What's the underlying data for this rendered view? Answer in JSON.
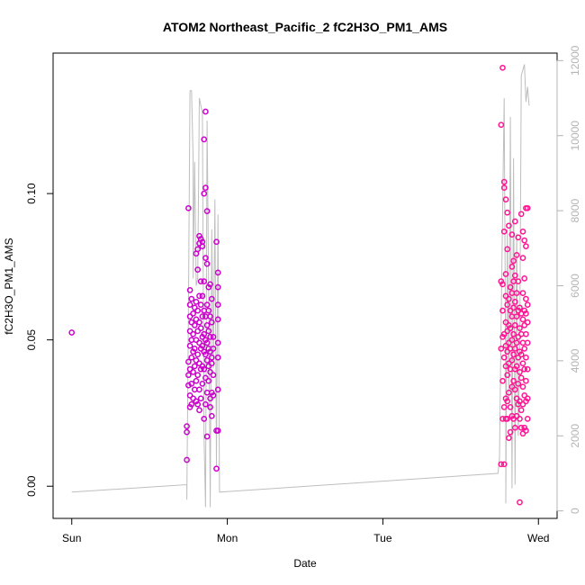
{
  "chart_data": {
    "type": "scatter",
    "title": "ATOM2 Northeast_Pacific_2 fC2H3O_PM1_AMS",
    "xlabel": "Date",
    "ylabel": "fC2H3O_PM1_AMS",
    "x_ticks": [
      "Sun",
      "Mon",
      "Tue",
      "Wed"
    ],
    "xlim": [
      -0.12,
      3.12
    ],
    "ylim": [
      -0.011,
      0.148
    ],
    "y_ticks": [
      0.0,
      0.05,
      0.1
    ],
    "y_tick_labels": [
      "0.00",
      "0.05",
      "0.10"
    ],
    "y2_ticks": [
      0,
      2000,
      4000,
      6000,
      8000,
      10000,
      12000
    ],
    "y2_tick_labels": [
      "0",
      "2000",
      "4000",
      "6000",
      "8000",
      "10000",
      "12000"
    ],
    "y2lim": [
      -200,
      12200
    ],
    "grid": false,
    "colors": {
      "points_mon": "#cc00cc",
      "points_wed": "#ff1493",
      "altitude_line": "#bebebe",
      "right_axis": "#b4b4b4"
    },
    "series": [
      {
        "kind": "points",
        "note_days_from_sunday": true,
        "points": [
          [
            0.0,
            0.0525
          ],
          [
            0.74,
            0.009
          ],
          [
            0.74,
            0.0185
          ],
          [
            0.74,
            0.0205
          ],
          [
            0.75,
            0.0345
          ],
          [
            0.75,
            0.038
          ],
          [
            0.75,
            0.0425
          ],
          [
            0.75,
            0.095
          ],
          [
            0.76,
            0.027
          ],
          [
            0.76,
            0.031
          ],
          [
            0.76,
            0.04
          ],
          [
            0.76,
            0.048
          ],
          [
            0.76,
            0.053
          ],
          [
            0.76,
            0.058
          ],
          [
            0.76,
            0.062
          ],
          [
            0.76,
            0.067
          ],
          [
            0.77,
            0.028
          ],
          [
            0.77,
            0.035
          ],
          [
            0.77,
            0.044
          ],
          [
            0.77,
            0.05
          ],
          [
            0.77,
            0.056
          ],
          [
            0.77,
            0.064
          ],
          [
            0.78,
            0.03
          ],
          [
            0.78,
            0.039
          ],
          [
            0.78,
            0.046
          ],
          [
            0.78,
            0.052
          ],
          [
            0.78,
            0.059
          ],
          [
            0.79,
            0.033
          ],
          [
            0.79,
            0.041
          ],
          [
            0.79,
            0.047
          ],
          [
            0.79,
            0.055
          ],
          [
            0.79,
            0.061
          ],
          [
            0.8,
            0.029
          ],
          [
            0.8,
            0.036
          ],
          [
            0.8,
            0.043
          ],
          [
            0.8,
            0.05
          ],
          [
            0.8,
            0.057
          ],
          [
            0.8,
            0.063
          ],
          [
            0.8,
            0.0795
          ],
          [
            0.81,
            0.028
          ],
          [
            0.81,
            0.038
          ],
          [
            0.81,
            0.045
          ],
          [
            0.81,
            0.053
          ],
          [
            0.81,
            0.06
          ],
          [
            0.81,
            0.074
          ],
          [
            0.81,
            0.081
          ],
          [
            0.82,
            0.026
          ],
          [
            0.82,
            0.033
          ],
          [
            0.82,
            0.042
          ],
          [
            0.82,
            0.049
          ],
          [
            0.82,
            0.056
          ],
          [
            0.82,
            0.065
          ],
          [
            0.82,
            0.083
          ],
          [
            0.82,
            0.0855
          ],
          [
            0.83,
            0.03
          ],
          [
            0.83,
            0.04
          ],
          [
            0.83,
            0.047
          ],
          [
            0.83,
            0.054
          ],
          [
            0.83,
            0.062
          ],
          [
            0.83,
            0.07
          ],
          [
            0.83,
            0.0845
          ],
          [
            0.84,
            0.035
          ],
          [
            0.84,
            0.041
          ],
          [
            0.84,
            0.048
          ],
          [
            0.84,
            0.051
          ],
          [
            0.84,
            0.058
          ],
          [
            0.84,
            0.065
          ],
          [
            0.84,
            0.082
          ],
          [
            0.84,
            0.0835
          ],
          [
            0.85,
            0.023
          ],
          [
            0.85,
            0.04
          ],
          [
            0.85,
            0.046
          ],
          [
            0.85,
            0.052
          ],
          [
            0.85,
            0.06
          ],
          [
            0.85,
            0.07
          ],
          [
            0.85,
            0.1185
          ],
          [
            0.85,
            0.1
          ],
          [
            0.86,
            0.028
          ],
          [
            0.86,
            0.037
          ],
          [
            0.86,
            0.045
          ],
          [
            0.86,
            0.05
          ],
          [
            0.86,
            0.058
          ],
          [
            0.86,
            0.078
          ],
          [
            0.86,
            0.128
          ],
          [
            0.86,
            0.102
          ],
          [
            0.87,
            0.017
          ],
          [
            0.87,
            0.032
          ],
          [
            0.87,
            0.043
          ],
          [
            0.87,
            0.049
          ],
          [
            0.87,
            0.055
          ],
          [
            0.87,
            0.062
          ],
          [
            0.87,
            0.076
          ],
          [
            0.87,
            0.094
          ],
          [
            0.88,
            0.036
          ],
          [
            0.88,
            0.041
          ],
          [
            0.88,
            0.047
          ],
          [
            0.88,
            0.053
          ],
          [
            0.88,
            0.06
          ],
          [
            0.88,
            0.068
          ],
          [
            0.89,
            0.027
          ],
          [
            0.89,
            0.03
          ],
          [
            0.89,
            0.039
          ],
          [
            0.89,
            0.046
          ],
          [
            0.89,
            0.051
          ],
          [
            0.89,
            0.058
          ],
          [
            0.89,
            0.069
          ],
          [
            0.9,
            0.024
          ],
          [
            0.9,
            0.032
          ],
          [
            0.9,
            0.042
          ],
          [
            0.9,
            0.044
          ],
          [
            0.9,
            0.056
          ],
          [
            0.9,
            0.064
          ],
          [
            0.91,
            0.031
          ],
          [
            0.91,
            0.038
          ],
          [
            0.91,
            0.047
          ],
          [
            0.91,
            0.051
          ],
          [
            0.93,
            0.006
          ],
          [
            0.93,
            0.019
          ],
          [
            0.93,
            0.0835
          ],
          [
            0.94,
            0.019
          ],
          [
            0.94,
            0.033
          ],
          [
            0.94,
            0.044
          ],
          [
            0.94,
            0.049
          ],
          [
            0.94,
            0.057
          ],
          [
            0.94,
            0.062
          ],
          [
            0.94,
            0.068
          ],
          [
            0.94,
            0.073
          ],
          [
            2.76,
            0.0075
          ],
          [
            2.76,
            0.047
          ],
          [
            2.76,
            0.07
          ],
          [
            2.76,
            0.1235
          ],
          [
            2.77,
            0.143
          ],
          [
            2.77,
            0.023
          ],
          [
            2.77,
            0.036
          ],
          [
            2.77,
            0.051
          ],
          [
            2.77,
            0.06
          ],
          [
            2.77,
            0.069
          ],
          [
            2.78,
            0.027
          ],
          [
            2.78,
            0.044
          ],
          [
            2.78,
            0.052
          ],
          [
            2.78,
            0.087
          ],
          [
            2.78,
            0.104
          ],
          [
            2.78,
            0.102
          ],
          [
            2.78,
            0.0075
          ],
          [
            2.79,
            0.023
          ],
          [
            2.79,
            0.03
          ],
          [
            2.79,
            0.041
          ],
          [
            2.79,
            0.048
          ],
          [
            2.79,
            0.056
          ],
          [
            2.79,
            0.065
          ],
          [
            2.79,
            0.0725
          ],
          [
            2.79,
            0.098
          ],
          [
            2.8,
            0.023
          ],
          [
            2.8,
            0.029
          ],
          [
            2.8,
            0.038
          ],
          [
            2.8,
            0.046
          ],
          [
            2.8,
            0.053
          ],
          [
            2.8,
            0.062
          ],
          [
            2.8,
            0.081
          ],
          [
            2.8,
            0.0935
          ],
          [
            2.81,
            0.0165
          ],
          [
            2.81,
            0.032
          ],
          [
            2.81,
            0.042
          ],
          [
            2.81,
            0.049
          ],
          [
            2.81,
            0.055
          ],
          [
            2.81,
            0.064
          ],
          [
            2.81,
            0.089
          ],
          [
            2.82,
            0.0185
          ],
          [
            2.82,
            0.027
          ],
          [
            2.82,
            0.04
          ],
          [
            2.82,
            0.047
          ],
          [
            2.82,
            0.054
          ],
          [
            2.82,
            0.06
          ],
          [
            2.82,
            0.068
          ],
          [
            2.83,
            0.024
          ],
          [
            2.83,
            0.034
          ],
          [
            2.83,
            0.043
          ],
          [
            2.83,
            0.05
          ],
          [
            2.83,
            0.058
          ],
          [
            2.83,
            0.066
          ],
          [
            2.83,
            0.075
          ],
          [
            2.83,
            0.086
          ],
          [
            2.84,
            0.023
          ],
          [
            2.84,
            0.036
          ],
          [
            2.84,
            0.045
          ],
          [
            2.84,
            0.052
          ],
          [
            2.84,
            0.061
          ],
          [
            2.84,
            0.07
          ],
          [
            2.84,
            0.077
          ],
          [
            2.85,
            0.02
          ],
          [
            2.85,
            0.033
          ],
          [
            2.85,
            0.04
          ],
          [
            2.85,
            0.047
          ],
          [
            2.85,
            0.055
          ],
          [
            2.85,
            0.063
          ],
          [
            2.85,
            0.072
          ],
          [
            2.85,
            0.0905
          ],
          [
            2.86,
            0.024
          ],
          [
            2.86,
            0.03
          ],
          [
            2.86,
            0.041
          ],
          [
            2.86,
            0.049
          ],
          [
            2.86,
            0.058
          ],
          [
            2.86,
            0.066
          ],
          [
            2.86,
            0.079
          ],
          [
            2.87,
            0.028
          ],
          [
            2.87,
            0.035
          ],
          [
            2.87,
            0.044
          ],
          [
            2.87,
            0.051
          ],
          [
            2.87,
            0.06
          ],
          [
            2.87,
            0.07
          ],
          [
            2.87,
            0.085
          ],
          [
            2.88,
            0.023
          ],
          [
            2.88,
            0.029
          ],
          [
            2.88,
            0.039
          ],
          [
            2.88,
            0.046
          ],
          [
            2.88,
            0.054
          ],
          [
            2.88,
            0.061
          ],
          [
            2.88,
            -0.0055
          ],
          [
            2.89,
            0.02
          ],
          [
            2.89,
            0.026
          ],
          [
            2.89,
            0.037
          ],
          [
            2.89,
            0.045
          ],
          [
            2.89,
            0.052
          ],
          [
            2.89,
            0.059
          ],
          [
            2.89,
            0.093
          ],
          [
            2.9,
            0.018
          ],
          [
            2.9,
            0.028
          ],
          [
            2.9,
            0.034
          ],
          [
            2.9,
            0.042
          ],
          [
            2.9,
            0.049
          ],
          [
            2.9,
            0.057
          ],
          [
            2.9,
            0.066
          ],
          [
            2.9,
            0.078
          ],
          [
            2.9,
            0.087
          ],
          [
            2.91,
            0.02
          ],
          [
            2.91,
            0.031
          ],
          [
            2.91,
            0.04
          ],
          [
            2.91,
            0.047
          ],
          [
            2.91,
            0.055
          ],
          [
            2.91,
            0.06
          ],
          [
            2.91,
            0.071
          ],
          [
            2.91,
            0.084
          ],
          [
            2.92,
            0.019
          ],
          [
            2.92,
            0.029
          ],
          [
            2.92,
            0.036
          ],
          [
            2.92,
            0.044
          ],
          [
            2.92,
            0.052
          ],
          [
            2.92,
            0.059
          ],
          [
            2.92,
            0.064
          ],
          [
            2.92,
            0.095
          ],
          [
            2.92,
            0.082
          ],
          [
            2.93,
            0.023
          ],
          [
            2.93,
            0.03
          ],
          [
            2.93,
            0.04
          ],
          [
            2.93,
            0.049
          ],
          [
            2.93,
            0.056
          ],
          [
            2.93,
            0.062
          ],
          [
            2.93,
            0.095
          ]
        ]
      },
      {
        "kind": "altitude_line",
        "axis": "right",
        "points": [
          [
            0.0,
            500
          ],
          [
            0.74,
            700
          ],
          [
            0.74,
            300
          ],
          [
            0.75,
            5400
          ],
          [
            0.76,
            11200
          ],
          [
            0.77,
            11200
          ],
          [
            0.78,
            9400
          ],
          [
            0.78,
            6200
          ],
          [
            0.79,
            9300
          ],
          [
            0.8,
            6000
          ],
          [
            0.81,
            6200
          ],
          [
            0.82,
            11000
          ],
          [
            0.83,
            10800
          ],
          [
            0.84,
            10600
          ],
          [
            0.85,
            2000
          ],
          [
            0.86,
            100
          ],
          [
            0.87,
            10400
          ],
          [
            0.88,
            6000
          ],
          [
            0.89,
            100
          ],
          [
            0.9,
            7500
          ],
          [
            0.91,
            3800
          ],
          [
            0.92,
            8300
          ],
          [
            0.93,
            1200
          ],
          [
            0.94,
            7900
          ],
          [
            0.95,
            500
          ],
          [
            2.74,
            1000
          ],
          [
            2.75,
            1400
          ],
          [
            2.76,
            5000
          ],
          [
            2.77,
            8000
          ],
          [
            2.78,
            11000
          ],
          [
            2.79,
            3000
          ],
          [
            2.79,
            200
          ],
          [
            2.8,
            7500
          ],
          [
            2.81,
            3000
          ],
          [
            2.82,
            10500
          ],
          [
            2.83,
            600
          ],
          [
            2.84,
            9400
          ],
          [
            2.85,
            700
          ],
          [
            2.86,
            7400
          ],
          [
            2.87,
            2000
          ],
          [
            2.88,
            4300
          ],
          [
            2.89,
            11600
          ],
          [
            2.91,
            11900
          ],
          [
            2.92,
            10900
          ],
          [
            2.93,
            11300
          ],
          [
            2.94,
            10800
          ]
        ]
      }
    ]
  }
}
